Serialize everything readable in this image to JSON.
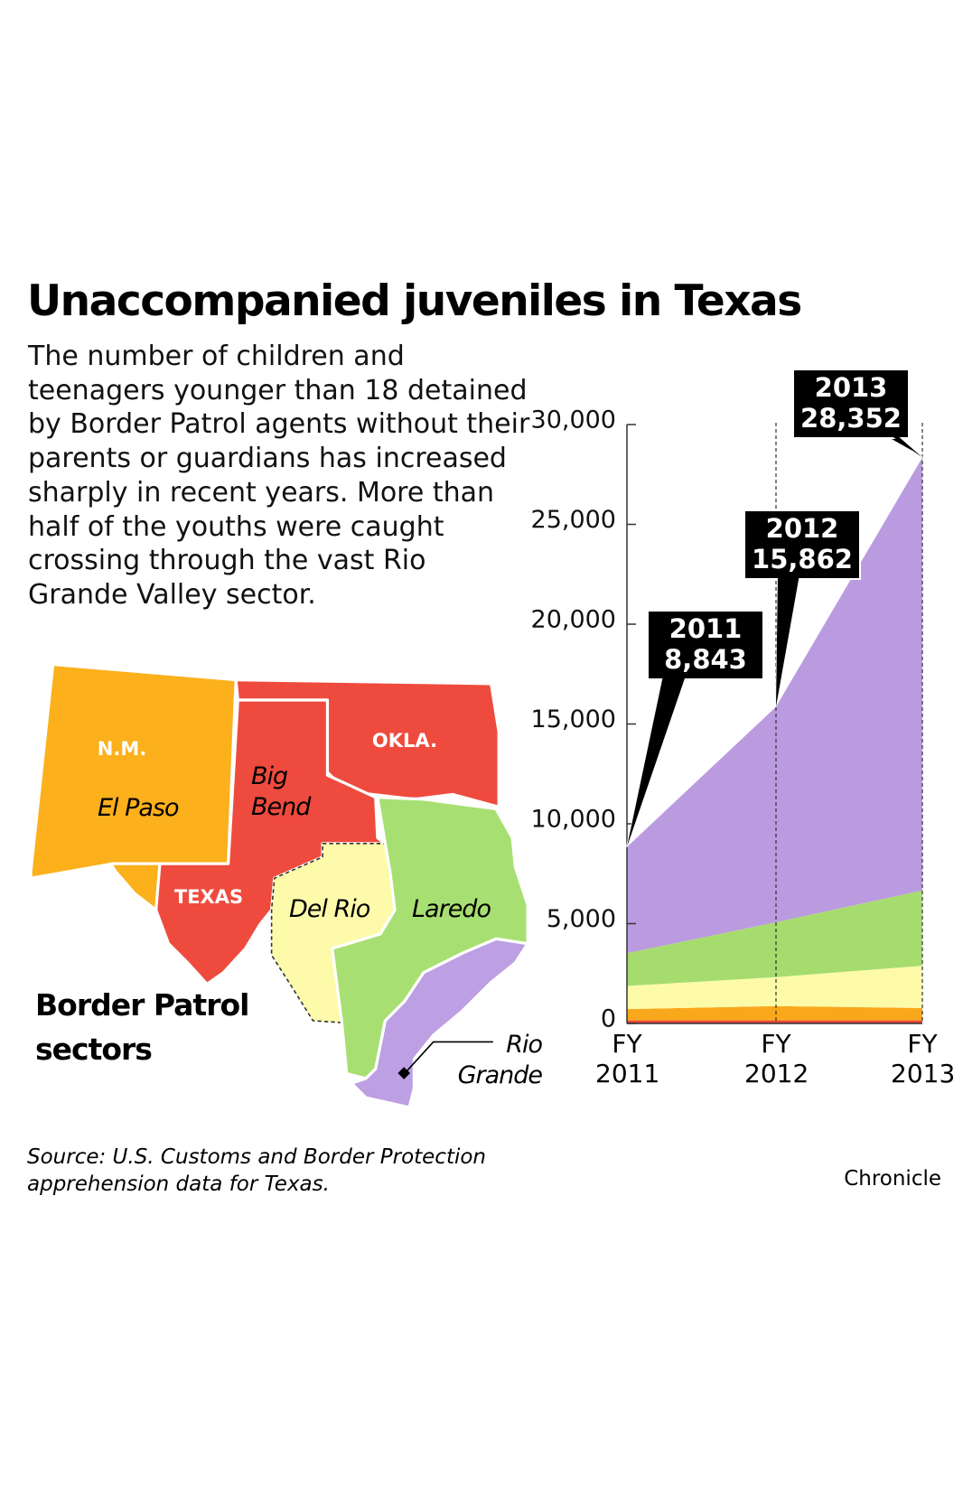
{
  "title": "Unaccompanied juveniles in Texas",
  "description": "The number of children and teenagers younger than 18 detained by Border Patrol agents without their parents or guardians has increased sharply in recent years. More than half of the youths were caught crossing through the vast Rio Grande Valley sector.",
  "map": {
    "title": "Border Patrol sectors",
    "state_labels": [
      "N.M.",
      "OKLA.",
      "TEXAS"
    ]
  },
  "source": "Source: U.S. Customs and Border Protection apprehension data for Texas.",
  "credit": "Chronicle",
  "chart_data": {
    "type": "stacked_area",
    "categories": [
      "FY 2011",
      "FY 2012",
      "FY 2013"
    ],
    "series": [
      {
        "name": "Big Bend",
        "color": "#e8473a",
        "values": [
          150,
          150,
          150
        ]
      },
      {
        "name": "El Paso",
        "color": "#f9a81c",
        "values": [
          570,
          720,
          620
        ]
      },
      {
        "name": "Del Rio",
        "color": "#fdfba8",
        "values": [
          1160,
          1450,
          2120
        ]
      },
      {
        "name": "Laredo",
        "color": "#a6dc6e",
        "values": [
          1640,
          2750,
          3770
        ]
      },
      {
        "name": "Rio Grande",
        "color": "#bb9be0",
        "values": [
          5323,
          10792,
          21692
        ]
      }
    ],
    "annotations": [
      {
        "year": "2011",
        "label": "8,843",
        "value": 8843
      },
      {
        "year": "2012",
        "label": "15,862",
        "value": 15862
      },
      {
        "year": "2013",
        "label": "28,352",
        "value": 28352
      }
    ],
    "ylim": [
      0,
      30000
    ],
    "yticks": [
      0,
      {
        "value": 5000,
        "label": "5,000"
      },
      {
        "value": 10000,
        "label": "10,000"
      },
      {
        "value": 15000,
        "label": "15,000"
      },
      {
        "value": 20000,
        "label": "20,000"
      },
      {
        "value": 25000,
        "label": "25,000"
      },
      {
        "value": 30000,
        "label": "30,000"
      }
    ]
  }
}
